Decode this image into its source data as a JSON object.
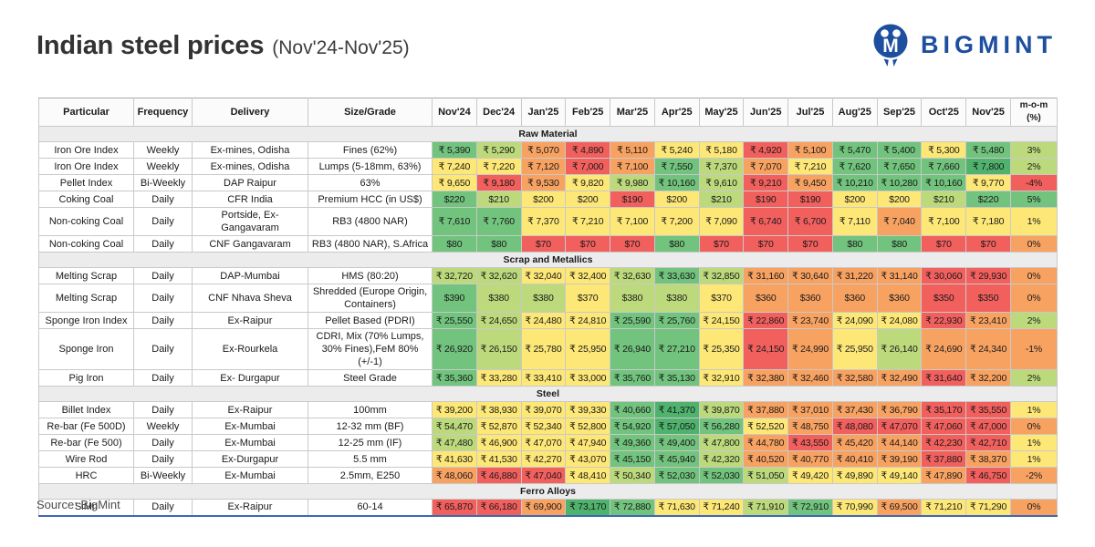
{
  "header": {
    "title": "Indian steel prices",
    "subtitle": "(Nov'24-Nov'25)",
    "brand": "BIGMINT"
  },
  "footer": {
    "source": "Source: BigMint"
  },
  "palette": {
    "dg": "#4fb36e",
    "g": "#71c37d",
    "lg": "#bcda7c",
    "y": "#fde777",
    "o": "#f8a262",
    "r": "#f2605e"
  },
  "brand_color": "#1d4f9e",
  "chart_data": {
    "type": "table",
    "title": "Indian steel prices (Nov'24-Nov'25)",
    "legend_note": "cell colors encode price level: green=high, yellow=mid, red=low",
    "columns": [
      "Particular",
      "Frequency",
      "Delivery",
      "Size/Grade",
      "Nov'24",
      "Dec'24",
      "Jan'25",
      "Feb'25",
      "Mar'25",
      "Apr'25",
      "May'25",
      "Jun'25",
      "Jul'25",
      "Aug'25",
      "Sep'25",
      "Oct'25",
      "Nov'25",
      "m-o-m (%)"
    ],
    "sections": [
      {
        "name": "Raw Material",
        "rows": [
          {
            "particular": "Iron Ore Index",
            "frequency": "Weekly",
            "delivery": "Ex-mines, Odisha",
            "size": "Fines (62%)",
            "values": [
              "₹ 5,390",
              "₹ 5,290",
              "₹ 5,070",
              "₹ 4,890",
              "₹ 5,110",
              "₹ 5,240",
              "₹ 5,180",
              "₹ 4,920",
              "₹ 5,100",
              "₹ 5,470",
              "₹ 5,400",
              "₹ 5,300",
              "₹ 5,480",
              "3%"
            ],
            "colors": [
              "g",
              "lg",
              "o",
              "r",
              "o",
              "y",
              "y",
              "r",
              "o",
              "g",
              "g",
              "y",
              "g",
              "lg"
            ]
          },
          {
            "particular": "Iron Ore Index",
            "frequency": "Weekly",
            "delivery": "Ex-mines, Odisha",
            "size": "Lumps (5-18mm, 63%)",
            "values": [
              "₹ 7,240",
              "₹ 7,220",
              "₹ 7,120",
              "₹ 7,000",
              "₹ 7,100",
              "₹ 7,550",
              "₹ 7,370",
              "₹ 7,070",
              "₹ 7,210",
              "₹ 7,620",
              "₹ 7,650",
              "₹ 7,660",
              "₹ 7,800",
              "2%"
            ],
            "colors": [
              "y",
              "y",
              "o",
              "r",
              "o",
              "g",
              "lg",
              "o",
              "y",
              "g",
              "g",
              "g",
              "dg",
              "lg"
            ]
          },
          {
            "particular": "Pellet Index",
            "frequency": "Bi-Weekly",
            "delivery": "DAP Raipur",
            "size": "63%",
            "values": [
              "₹ 9,650",
              "₹ 9,180",
              "₹ 9,530",
              "₹ 9,820",
              "₹ 9,980",
              "₹ 10,160",
              "₹ 9,610",
              "₹ 9,210",
              "₹ 9,450",
              "₹ 10,210",
              "₹ 10,280",
              "₹ 10,160",
              "₹ 9,770",
              "-4%"
            ],
            "colors": [
              "y",
              "r",
              "o",
              "y",
              "lg",
              "g",
              "lg",
              "r",
              "o",
              "g",
              "g",
              "g",
              "y",
              "r"
            ]
          },
          {
            "particular": "Coking Coal",
            "frequency": "Daily",
            "delivery": "CFR India",
            "size": "Premium HCC (in US$)",
            "values": [
              "$220",
              "$210",
              "$200",
              "$200",
              "$190",
              "$200",
              "$210",
              "$190",
              "$190",
              "$200",
              "$200",
              "$210",
              "$220",
              "5%"
            ],
            "colors": [
              "g",
              "lg",
              "y",
              "y",
              "r",
              "y",
              "lg",
              "r",
              "r",
              "y",
              "y",
              "lg",
              "g",
              "g"
            ]
          },
          {
            "particular": "Non-coking Coal",
            "frequency": "Daily",
            "delivery": "Portside, Ex-Gangavaram",
            "size": "RB3 (4800 NAR)",
            "values": [
              "₹ 7,610",
              "₹ 7,760",
              "₹ 7,370",
              "₹ 7,210",
              "₹ 7,100",
              "₹ 7,200",
              "₹ 7,090",
              "₹ 6,740",
              "₹ 6,700",
              "₹ 7,110",
              "₹ 7,040",
              "₹ 7,100",
              "₹ 7,180",
              "1%"
            ],
            "colors": [
              "g",
              "g",
              "y",
              "y",
              "y",
              "y",
              "y",
              "r",
              "r",
              "y",
              "o",
              "y",
              "y",
              "y"
            ]
          },
          {
            "particular": "Non-coking Coal",
            "frequency": "Daily",
            "delivery": "CNF Gangavaram",
            "size": "RB3 (4800 NAR), S.Africa",
            "values": [
              "$80",
              "$80",
              "$70",
              "$70",
              "$70",
              "$80",
              "$70",
              "$70",
              "$70",
              "$80",
              "$80",
              "$70",
              "$70",
              "0%"
            ],
            "colors": [
              "g",
              "g",
              "r",
              "r",
              "r",
              "g",
              "r",
              "r",
              "r",
              "g",
              "g",
              "r",
              "r",
              "o"
            ]
          }
        ]
      },
      {
        "name": "Scrap and Metallics",
        "rows": [
          {
            "particular": "Melting Scrap",
            "frequency": "Daily",
            "delivery": "DAP-Mumbai",
            "size": "HMS (80:20)",
            "values": [
              "₹ 32,720",
              "₹ 32,620",
              "₹ 32,040",
              "₹ 32,400",
              "₹ 32,630",
              "₹ 33,630",
              "₹ 32,850",
              "₹ 31,160",
              "₹ 30,640",
              "₹ 31,220",
              "₹ 31,140",
              "₹ 30,060",
              "₹ 29,930",
              "0%"
            ],
            "colors": [
              "lg",
              "lg",
              "y",
              "y",
              "lg",
              "g",
              "lg",
              "o",
              "o",
              "o",
              "o",
              "r",
              "r",
              "o"
            ]
          },
          {
            "particular": "Melting Scrap",
            "frequency": "Daily",
            "delivery": "CNF Nhava Sheva",
            "size": "Shredded (Europe Origin, Containers)",
            "values": [
              "$390",
              "$380",
              "$380",
              "$370",
              "$380",
              "$380",
              "$370",
              "$360",
              "$360",
              "$360",
              "$360",
              "$350",
              "$350",
              "0%"
            ],
            "colors": [
              "g",
              "lg",
              "lg",
              "y",
              "lg",
              "lg",
              "y",
              "o",
              "o",
              "o",
              "o",
              "r",
              "r",
              "o"
            ]
          },
          {
            "particular": "Sponge Iron Index",
            "frequency": "Daily",
            "delivery": "Ex-Raipur",
            "size": "Pellet Based (PDRI)",
            "values": [
              "₹ 25,550",
              "₹ 24,650",
              "₹ 24,480",
              "₹ 24,810",
              "₹ 25,590",
              "₹ 25,760",
              "₹ 24,150",
              "₹ 22,860",
              "₹ 23,740",
              "₹ 24,090",
              "₹ 24,080",
              "₹ 22,930",
              "₹ 23,410",
              "2%"
            ],
            "colors": [
              "g",
              "lg",
              "y",
              "y",
              "g",
              "g",
              "y",
              "r",
              "o",
              "y",
              "y",
              "r",
              "o",
              "lg"
            ]
          },
          {
            "particular": "Sponge Iron",
            "frequency": "Daily",
            "delivery": "Ex-Rourkela",
            "size": "CDRI, Mix (70% Lumps, 30% Fines),FeM 80% (+/-1)",
            "values": [
              "₹ 26,920",
              "₹ 26,150",
              "₹ 25,780",
              "₹ 25,950",
              "₹ 26,940",
              "₹ 27,210",
              "₹ 25,350",
              "₹ 24,150",
              "₹ 24,990",
              "₹ 25,950",
              "₹ 26,140",
              "₹ 24,690",
              "₹ 24,340",
              "-1%"
            ],
            "colors": [
              "g",
              "lg",
              "y",
              "y",
              "g",
              "g",
              "y",
              "r",
              "o",
              "y",
              "lg",
              "o",
              "o",
              "o"
            ]
          },
          {
            "particular": "Pig Iron",
            "frequency": "Daily",
            "delivery": "Ex- Durgapur",
            "size": "Steel Grade",
            "values": [
              "₹ 35,360",
              "₹ 33,280",
              "₹ 33,410",
              "₹ 33,000",
              "₹ 35,760",
              "₹ 35,130",
              "₹ 32,910",
              "₹ 32,380",
              "₹ 32,460",
              "₹ 32,580",
              "₹ 32,490",
              "₹ 31,640",
              "₹ 32,200",
              "2%"
            ],
            "colors": [
              "g",
              "y",
              "y",
              "y",
              "g",
              "g",
              "y",
              "o",
              "o",
              "o",
              "o",
              "r",
              "o",
              "lg"
            ]
          }
        ]
      },
      {
        "name": "Steel",
        "rows": [
          {
            "particular": "Billet Index",
            "frequency": "Daily",
            "delivery": "Ex-Raipur",
            "size": "100mm",
            "values": [
              "₹ 39,200",
              "₹ 38,930",
              "₹ 39,070",
              "₹ 39,330",
              "₹ 40,660",
              "₹ 41,370",
              "₹ 39,870",
              "₹ 37,880",
              "₹ 37,010",
              "₹ 37,430",
              "₹ 36,790",
              "₹ 35,170",
              "₹ 35,550",
              "1%"
            ],
            "colors": [
              "y",
              "y",
              "y",
              "y",
              "g",
              "dg",
              "lg",
              "o",
              "o",
              "o",
              "o",
              "r",
              "r",
              "y"
            ]
          },
          {
            "particular": "Re-bar (Fe 500D)",
            "frequency": "Weekly",
            "delivery": "Ex-Mumbai",
            "size": "12-32 mm (BF)",
            "values": [
              "₹ 54,470",
              "₹ 52,870",
              "₹ 52,340",
              "₹ 52,800",
              "₹ 54,920",
              "₹ 57,050",
              "₹ 56,280",
              "₹ 52,520",
              "₹ 48,750",
              "₹ 48,080",
              "₹ 47,070",
              "₹ 47,060",
              "₹ 47,000",
              "0%"
            ],
            "colors": [
              "lg",
              "y",
              "y",
              "y",
              "g",
              "dg",
              "g",
              "y",
              "o",
              "r",
              "r",
              "r",
              "r",
              "o"
            ]
          },
          {
            "particular": "Re-bar (Fe 500)",
            "frequency": "Daily",
            "delivery": "Ex-Mumbai",
            "size": "12-25 mm (IF)",
            "values": [
              "₹ 47,480",
              "₹ 46,900",
              "₹ 47,070",
              "₹ 47,940",
              "₹ 49,360",
              "₹ 49,400",
              "₹ 47,800",
              "₹ 44,780",
              "₹ 43,550",
              "₹ 45,420",
              "₹ 44,140",
              "₹ 42,230",
              "₹ 42,710",
              "1%"
            ],
            "colors": [
              "lg",
              "y",
              "y",
              "y",
              "g",
              "g",
              "lg",
              "o",
              "r",
              "o",
              "o",
              "r",
              "r",
              "y"
            ]
          },
          {
            "particular": "Wire Rod",
            "frequency": "Daily",
            "delivery": "Ex-Durgapur",
            "size": "5.5 mm",
            "values": [
              "₹ 41,630",
              "₹ 41,530",
              "₹ 42,270",
              "₹ 43,070",
              "₹ 45,150",
              "₹ 45,940",
              "₹ 42,320",
              "₹ 40,520",
              "₹ 40,770",
              "₹ 40,410",
              "₹ 39,190",
              "₹ 37,880",
              "₹ 38,370",
              "1%"
            ],
            "colors": [
              "y",
              "y",
              "y",
              "y",
              "g",
              "g",
              "lg",
              "o",
              "o",
              "o",
              "o",
              "r",
              "o",
              "y"
            ]
          },
          {
            "particular": "HRC",
            "frequency": "Bi-Weekly",
            "delivery": "Ex-Mumbai",
            "size": "2.5mm, E250",
            "values": [
              "₹ 48,060",
              "₹ 46,880",
              "₹ 47,040",
              "₹ 48,410",
              "₹ 50,340",
              "₹ 52,030",
              "₹ 52,030",
              "₹ 51,050",
              "₹ 49,420",
              "₹ 49,890",
              "₹ 49,140",
              "₹ 47,890",
              "₹ 46,750",
              "-2%"
            ],
            "colors": [
              "o",
              "r",
              "r",
              "y",
              "lg",
              "g",
              "g",
              "lg",
              "y",
              "y",
              "y",
              "o",
              "r",
              "o"
            ]
          }
        ]
      },
      {
        "name": "Ferro Alloys",
        "rows": [
          {
            "particular": "SiMn",
            "frequency": "Daily",
            "delivery": "Ex-Raipur",
            "size": "60-14",
            "values": [
              "₹ 65,870",
              "₹ 66,180",
              "₹ 69,900",
              "₹ 73,170",
              "₹ 72,880",
              "₹ 71,630",
              "₹ 71,240",
              "₹ 71,910",
              "₹ 72,910",
              "₹ 70,990",
              "₹ 69,500",
              "₹ 71,210",
              "₹ 71,290",
              "0%"
            ],
            "colors": [
              "r",
              "r",
              "o",
              "dg",
              "g",
              "y",
              "y",
              "lg",
              "g",
              "y",
              "o",
              "y",
              "y",
              "o"
            ]
          }
        ]
      }
    ]
  }
}
